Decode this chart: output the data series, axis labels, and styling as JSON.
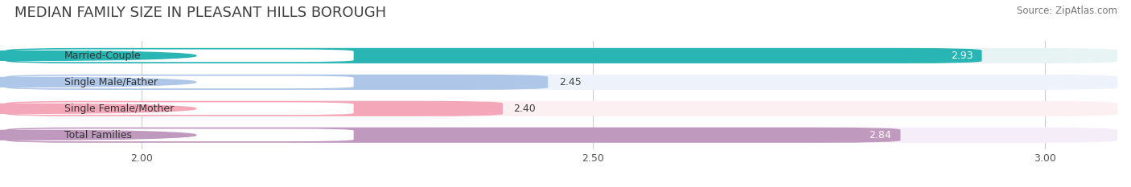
{
  "title": "MEDIAN FAMILY SIZE IN PLEASANT HILLS BOROUGH",
  "source": "Source: ZipAtlas.com",
  "categories": [
    "Married-Couple",
    "Single Male/Father",
    "Single Female/Mother",
    "Total Families"
  ],
  "values": [
    2.93,
    2.45,
    2.4,
    2.84
  ],
  "bar_colors": [
    "#2ab5b5",
    "#aec6e8",
    "#f4a7b9",
    "#c09abe"
  ],
  "bar_bg_colors": [
    "#e8f4f4",
    "#eef3fb",
    "#fdf0f3",
    "#f5eef8"
  ],
  "value_inside": [
    true,
    false,
    false,
    true
  ],
  "value_colors_inside": [
    "#ffffff",
    "#555555",
    "#555555",
    "#ffffff"
  ],
  "label_pill_colors": [
    "#2ab5b5",
    "#aec6e8",
    "#f4a7b9",
    "#c09abe"
  ],
  "xlim_min": 1.85,
  "xlim_max": 3.08,
  "xticks": [
    2.0,
    2.5,
    3.0
  ],
  "bar_height": 0.58,
  "bar_gap": 0.18,
  "figsize": [
    14.06,
    2.33
  ],
  "dpi": 100,
  "title_fontsize": 13,
  "source_fontsize": 8.5,
  "label_fontsize": 9,
  "value_fontsize": 9,
  "tick_fontsize": 9,
  "bg_color": "#ffffff",
  "title_color": "#404040"
}
